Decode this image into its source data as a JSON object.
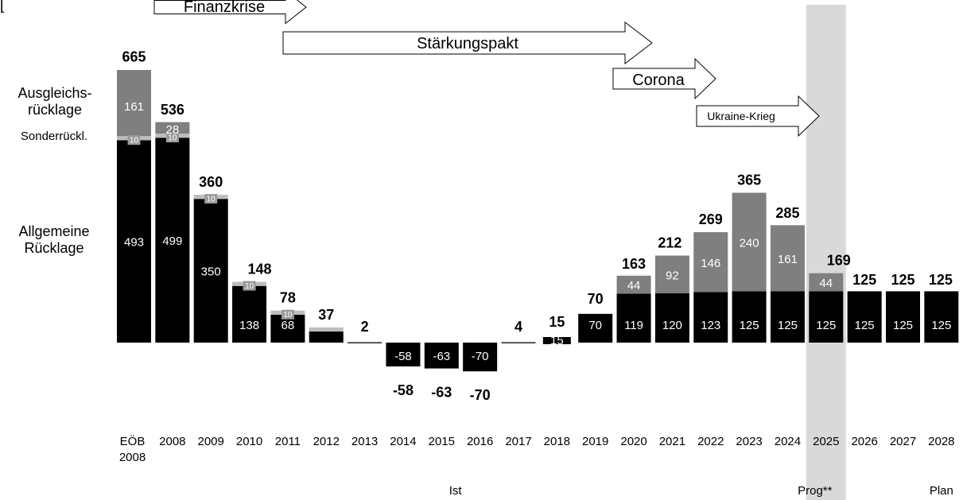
{
  "corner_mark": "[",
  "chart_data": {
    "type": "bar",
    "categories": [
      "EÖB 2008",
      "2008",
      "2009",
      "2010",
      "2011",
      "2012",
      "2013",
      "2014",
      "2015",
      "2016",
      "2017",
      "2018",
      "2019",
      "2020",
      "2021",
      "2022",
      "2023",
      "2024",
      "2025",
      "2026",
      "2027",
      "2028"
    ],
    "category_lines": [
      [
        "EÖB",
        "2008"
      ],
      [
        "2008"
      ],
      [
        "2009"
      ],
      [
        "2010"
      ],
      [
        "2011"
      ],
      [
        "2012"
      ],
      [
        "2013"
      ],
      [
        "2014"
      ],
      [
        "2015"
      ],
      [
        "2016"
      ],
      [
        "2017"
      ],
      [
        "2018"
      ],
      [
        "2019"
      ],
      [
        "2020"
      ],
      [
        "2021"
      ],
      [
        "2022"
      ],
      [
        "2023"
      ],
      [
        "2024"
      ],
      [
        "2025"
      ],
      [
        "2026"
      ],
      [
        "2027"
      ],
      [
        "2028"
      ]
    ],
    "series": [
      {
        "name": "Allgemeine Rücklage",
        "label_lines": [
          "Allgemeine",
          "Rücklage"
        ],
        "color": "#000000",
        "values": [
          493,
          499,
          350,
          138,
          68,
          27,
          2,
          -58,
          -63,
          -70,
          4,
          15,
          70,
          119,
          120,
          123,
          125,
          125,
          125,
          125,
          125,
          125
        ],
        "value_labels": [
          "493",
          "499",
          "350",
          "138",
          "68",
          "",
          "",
          "-58",
          "-63",
          "-70",
          "",
          "15",
          "70",
          "119",
          "120",
          "123",
          "125",
          "125",
          "125",
          "125",
          "125",
          "125"
        ]
      },
      {
        "name": "Sonderrückl.",
        "label_lines": [
          "Sonderrückl."
        ],
        "color": "#bdbdbd",
        "values": [
          10,
          10,
          10,
          10,
          10,
          10,
          0,
          0,
          0,
          0,
          0,
          0,
          0,
          0,
          0,
          0,
          0,
          0,
          0,
          0,
          0,
          0
        ],
        "value_labels": [
          "10",
          "10",
          "10",
          "10",
          "10",
          "",
          "",
          "",
          "",
          "",
          "",
          "",
          "",
          "",
          "",
          "",
          "",
          "",
          "",
          "",
          "",
          ""
        ]
      },
      {
        "name": "Ausgleichsrücklage",
        "label_lines": [
          "Ausgleichs-",
          "rücklage"
        ],
        "color": "#7f7f7f",
        "values": [
          161,
          28,
          0,
          0,
          0,
          0,
          0,
          0,
          0,
          0,
          0,
          0,
          0,
          44,
          92,
          146,
          240,
          161,
          44,
          0,
          0,
          0
        ],
        "value_labels": [
          "161",
          "28",
          "",
          "",
          "",
          "",
          "",
          "",
          "",
          "",
          "",
          "",
          "",
          "44",
          "92",
          "146",
          "240",
          "161",
          "44",
          "",
          "",
          ""
        ]
      }
    ],
    "totals": [
      665,
      536,
      360,
      148,
      78,
      37,
      2,
      -58,
      -63,
      -70,
      4,
      15,
      70,
      163,
      212,
      269,
      365,
      285,
      169,
      125,
      125,
      125
    ],
    "ylim": [
      -100,
      700
    ],
    "highlight_category": "2025",
    "arrows": [
      {
        "label": "Finanzkrise",
        "start": "2008",
        "end": "2012"
      },
      {
        "label": "Stärkungspakt",
        "start": "2012",
        "end": "2021"
      },
      {
        "label": "Corona",
        "start": "2020",
        "end": "2022"
      },
      {
        "label": "Ukraine-Krieg",
        "start": "2021",
        "end": "2025"
      }
    ],
    "phases": [
      {
        "label": "Ist",
        "category": "2016"
      },
      {
        "label": "Prog**",
        "category": "2025"
      },
      {
        "label": "Plan",
        "category": "2028"
      }
    ]
  }
}
